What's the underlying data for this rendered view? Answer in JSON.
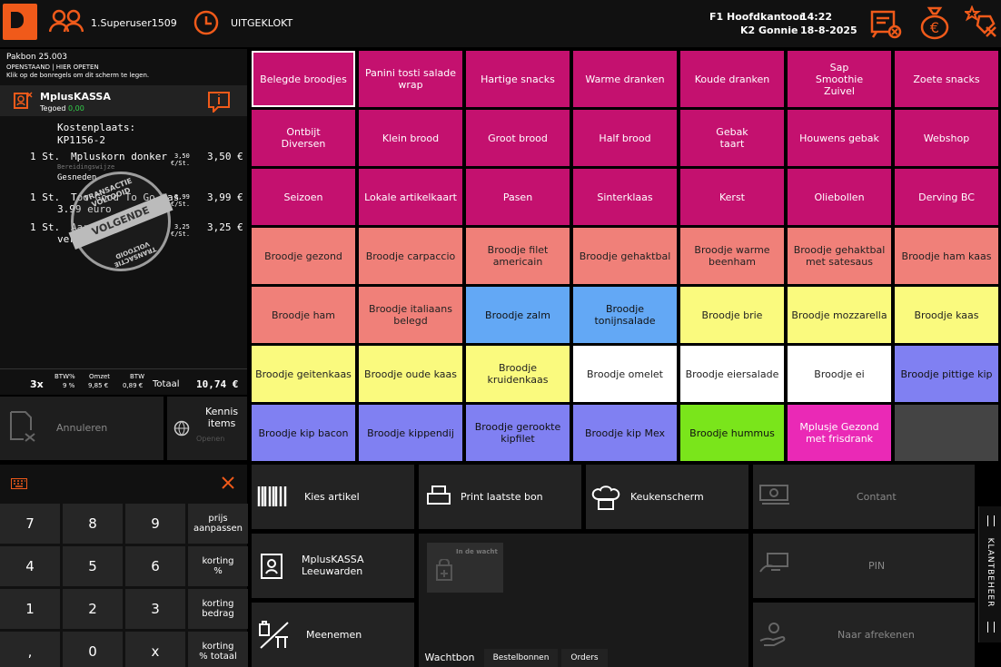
{
  "header": {
    "user": "1.Superuser1509",
    "status": "UITGEKLOKT",
    "branch": "F1 Hoofdkantoor",
    "time": "14:22",
    "register": "K2 Gonnie",
    "date": "18-8-2025"
  },
  "receipt": {
    "pakbon": "Pakbon 25.003",
    "state": "OPENSTAAND | HIER OPETEN",
    "hint": "Klik op de bonregels om dit scherm te legen.",
    "customer": "MplusKASSA",
    "credit_label": "Tegoed",
    "credit": "0,00",
    "cost_label": "Kostenplaats:",
    "cost_code": "KP1156-2",
    "lines": [
      {
        "qty": "1 St.",
        "name": "Mpluskorn donker",
        "unit": "3,50",
        "per": "€/St.",
        "price": "3,50 €",
        "sub1": "Bereidingswijze",
        "sub2": "Gesneden"
      },
      {
        "qty": "1 St.",
        "name": "Too Good To Go tas",
        "name2": "3.99 euro",
        "unit": "3,99",
        "per": "€/St.",
        "price": "3,99 €"
      },
      {
        "qty": "1 St.",
        "name": "Aardbei",
        "name2": "vers",
        "unit": "3,25",
        "per": "€/St.",
        "price": "3,25 €"
      }
    ],
    "stamp_top": "TRANSACTIE VOLTOOID",
    "stamp_mid": "VOLGENDE",
    "stamp_bottom": "TRANSACTIE VOLTOOID",
    "totals": {
      "count": "3x",
      "btw_label": "BTW%",
      "btw": "9 %",
      "omzet_label": "Omzet",
      "omzet": "9,85 €",
      "btw2_label": "BTW",
      "btw2": "0,89 €",
      "total_label": "Totaal",
      "total": "10,74 €"
    }
  },
  "actions": {
    "cancel": "Annuleren",
    "kennis": "Kennis\nitems",
    "kennis_sub": "Openen"
  },
  "keypad": {
    "keys": [
      "7",
      "8",
      "9",
      "4",
      "5",
      "6",
      "1",
      "2",
      "3",
      ",",
      "0",
      "x"
    ],
    "side": [
      "prijs\naanpassen",
      "korting\n%",
      "korting\nbedrag",
      "korting\n% totaal"
    ]
  },
  "tiles": [
    [
      "Belegde broodjes",
      "Panini tosti salade\nwrap",
      "Hartige snacks",
      "Warme dranken",
      "Koude dranken",
      "Sap\nSmoothie\nZuivel",
      "Zoete snacks"
    ],
    [
      "Ontbijt\nDiversen",
      "Klein brood",
      "Groot brood",
      "Half brood",
      "Gebak\ntaart",
      "Houwens gebak",
      "Webshop"
    ],
    [
      "Seizoen",
      "Lokale artikelkaart",
      "Pasen",
      "Sinterklaas",
      "Kerst",
      "Oliebollen",
      "Derving BC"
    ],
    [
      "Broodje gezond",
      "Broodje carpaccio",
      "Broodje filet\namericain",
      "Broodje gehaktbal",
      "Broodje warme\nbeenham",
      "Broodje gehaktbal\nmet satesaus",
      "Broodje ham kaas"
    ],
    [
      "Broodje ham",
      "Broodje italiaans\nbelegd",
      "Broodje zalm",
      "Broodje\ntonijnsalade",
      "Broodje brie",
      "Broodje mozzarella",
      "Broodje kaas"
    ],
    [
      "Broodje geitenkaas",
      "Broodje oude kaas",
      "Broodje\nkruidenkaas",
      "Broodje omelet",
      "Broodje eiersalade",
      "Broodje ei",
      "Broodje pittige kip"
    ],
    [
      "Broodje kip bacon",
      "Broodje kippendij",
      "Broodje gerookte\nkipfilet",
      "Broodje kip Mex",
      "Broodje hummus",
      "Mplusje Gezond\nmet frisdrank",
      ""
    ]
  ],
  "tile_colors": [
    [
      "mag",
      "mag",
      "mag",
      "mag",
      "mag",
      "mag",
      "mag"
    ],
    [
      "mag",
      "mag",
      "mag",
      "mag",
      "mag",
      "mag",
      "mag"
    ],
    [
      "mag",
      "mag",
      "mag",
      "mag",
      "mag",
      "mag",
      "mag"
    ],
    [
      "sal",
      "sal",
      "sal",
      "sal",
      "sal",
      "sal",
      "sal"
    ],
    [
      "sal",
      "sal",
      "blu",
      "blu",
      "yel",
      "yel",
      "yel"
    ],
    [
      "yel",
      "yel",
      "yel",
      "wht",
      "wht",
      "wht",
      "vio"
    ],
    [
      "vio",
      "vio",
      "vio",
      "vio",
      "grn",
      "pnk",
      "gry"
    ]
  ],
  "bottom": {
    "kies": "Kies artikel",
    "print": "Print laatste bon",
    "keuken": "Keukenscherm",
    "contant": "Contant",
    "mplus": "MplusKASSA\nLeeuwarden",
    "wacht_label": "In de wacht",
    "pin": "PIN",
    "meenemen": "Meenemen",
    "afrekenen": "Naar afrekenen",
    "tabs": [
      "Wachtbon",
      "Bestelbonnen",
      "Orders"
    ],
    "side_tab": "KLANTBEHEER"
  }
}
